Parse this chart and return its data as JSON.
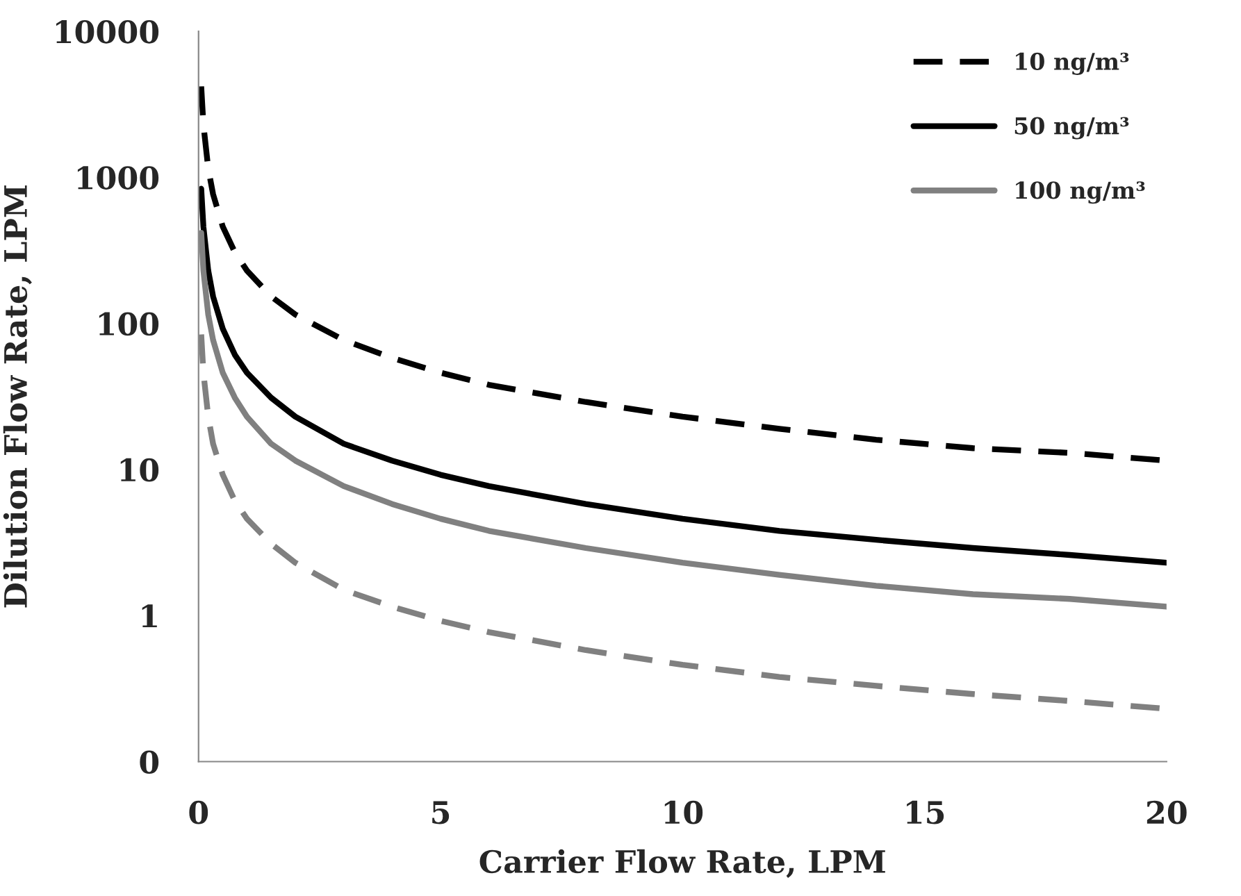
{
  "chart_data": {
    "type": "line",
    "xlabel": "Carrier Flow Rate, LPM",
    "ylabel": "Dilution Flow Rate, LPM",
    "log": "y",
    "xlim": [
      0,
      20
    ],
    "xticks": [
      0,
      5,
      10,
      15,
      20
    ],
    "ylim": [
      0.1,
      10000
    ],
    "yticks": [
      {
        "value": 0.1,
        "label": "0"
      },
      1,
      10,
      100,
      1000,
      10000
    ],
    "grid": false,
    "legend": "top right",
    "x": [
      0.055,
      0.1,
      0.2,
      0.3,
      0.5,
      0.75,
      1,
      1.5,
      2,
      3,
      4,
      5,
      6,
      8,
      10,
      12,
      14,
      16,
      18,
      20
    ],
    "series": [
      {
        "name": "10 ng/m³",
        "color": "#000000",
        "line_style": "dashed",
        "values": [
          4200,
          2300,
          1150,
          767,
          460,
          307,
          230,
          153,
          115,
          77,
          58,
          46,
          38,
          29,
          23,
          19,
          16,
          14,
          13,
          11.5
        ]
      },
      {
        "name": "50 ng/m³",
        "color": "#000000",
        "line_style": "solid",
        "values": [
          836,
          460,
          230,
          153,
          92,
          61,
          46,
          31,
          23,
          15,
          11.5,
          9.2,
          7.7,
          5.8,
          4.6,
          3.8,
          3.3,
          2.9,
          2.6,
          2.3
        ]
      },
      {
        "name": "100 ng/m³",
        "color": "#808080",
        "line_style": "solid",
        "values": [
          418,
          230,
          115,
          77,
          46,
          31,
          23,
          15,
          11.5,
          7.7,
          5.8,
          4.6,
          3.8,
          2.9,
          2.3,
          1.9,
          1.6,
          1.4,
          1.3,
          1.15
        ]
      },
      {
        "color": "#808080",
        "line_style": "dashed",
        "values": [
          84,
          46,
          23,
          15,
          9.2,
          6.1,
          4.6,
          3.1,
          2.3,
          1.5,
          1.15,
          0.92,
          0.77,
          0.58,
          0.46,
          0.38,
          0.33,
          0.29,
          0.26,
          0.23
        ]
      }
    ]
  }
}
